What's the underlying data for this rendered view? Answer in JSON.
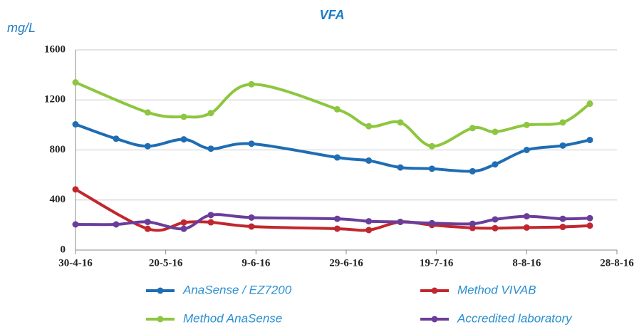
{
  "chart_data": {
    "type": "line",
    "title": "VFA",
    "y_label": "mg/L",
    "xlim": [
      "2016-04-30",
      "2016-08-28"
    ],
    "xticks": [
      {
        "value": "2016-04-30",
        "label": "30-4-16"
      },
      {
        "value": "2016-05-20",
        "label": "20-5-16"
      },
      {
        "value": "2016-06-09",
        "label": "9-6-16"
      },
      {
        "value": "2016-06-29",
        "label": "29-6-16"
      },
      {
        "value": "2016-07-19",
        "label": "19-7-16"
      },
      {
        "value": "2016-08-08",
        "label": "8-8-16"
      },
      {
        "value": "2016-08-28",
        "label": "28-8-16"
      }
    ],
    "ylim": [
      0,
      1600
    ],
    "yticks": [
      0,
      400,
      800,
      1200,
      1600
    ],
    "grid": true,
    "series": [
      {
        "name": "AnaSense / EZ7200",
        "color": "#1f6db3",
        "x": [
          "2016-04-30",
          "2016-05-09",
          "2016-05-16",
          "2016-05-24",
          "2016-05-30",
          "2016-06-08",
          "2016-06-27",
          "2016-07-04",
          "2016-07-11",
          "2016-07-18",
          "2016-07-27",
          "2016-08-01",
          "2016-08-08",
          "2016-08-16",
          "2016-08-22"
        ],
        "values": [
          1005,
          890,
          830,
          885,
          810,
          850,
          740,
          715,
          660,
          650,
          630,
          685,
          800,
          835,
          880
        ]
      },
      {
        "name": "Method VIVAB",
        "color": "#c1272d",
        "x": [
          "2016-04-30",
          "2016-05-16",
          "2016-05-24",
          "2016-05-30",
          "2016-06-08",
          "2016-06-27",
          "2016-07-04",
          "2016-07-11",
          "2016-07-18",
          "2016-07-27",
          "2016-08-01",
          "2016-08-08",
          "2016-08-16",
          "2016-08-22"
        ],
        "values": [
          485,
          170,
          220,
          222,
          188,
          171,
          160,
          225,
          200,
          177,
          175,
          180,
          185,
          195
        ]
      },
      {
        "name": "Method AnaSense",
        "color": "#8dc63f",
        "x": [
          "2016-04-30",
          "2016-05-16",
          "2016-05-24",
          "2016-05-30",
          "2016-06-08",
          "2016-06-27",
          "2016-07-04",
          "2016-07-11",
          "2016-07-18",
          "2016-07-27",
          "2016-08-01",
          "2016-08-08",
          "2016-08-16",
          "2016-08-22"
        ],
        "values": [
          1340,
          1100,
          1065,
          1095,
          1325,
          1125,
          990,
          1020,
          830,
          975,
          945,
          1000,
          1020,
          1170
        ]
      },
      {
        "name": "Accredited laboratory",
        "color": "#6a3d9a",
        "x": [
          "2016-04-30",
          "2016-05-09",
          "2016-05-16",
          "2016-05-24",
          "2016-05-30",
          "2016-06-08",
          "2016-06-27",
          "2016-07-04",
          "2016-07-11",
          "2016-07-18",
          "2016-07-27",
          "2016-08-01",
          "2016-08-08",
          "2016-08-16",
          "2016-08-22"
        ],
        "values": [
          205,
          205,
          225,
          170,
          280,
          260,
          250,
          230,
          225,
          215,
          210,
          245,
          270,
          250,
          255
        ]
      }
    ]
  }
}
